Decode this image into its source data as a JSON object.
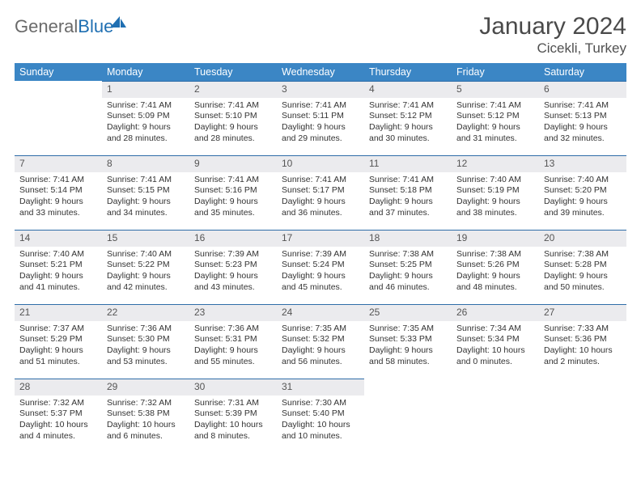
{
  "logo": {
    "text_gray": "General",
    "text_blue": "Blue"
  },
  "title": "January 2024",
  "location": "Cicekli, Turkey",
  "colors": {
    "header_bg": "#3b86c5",
    "header_text": "#ffffff",
    "daynum_bg": "#ebebee",
    "daynum_border": "#2f6da8",
    "body_text": "#333333",
    "title_text": "#4a4a4a",
    "logo_gray": "#6a6a6a",
    "logo_blue": "#1f6fb2"
  },
  "weekdays": [
    "Sunday",
    "Monday",
    "Tuesday",
    "Wednesday",
    "Thursday",
    "Friday",
    "Saturday"
  ],
  "weeks": [
    [
      null,
      {
        "d": "1",
        "sr": "7:41 AM",
        "ss": "5:09 PM",
        "dl": "9 hours and 28 minutes."
      },
      {
        "d": "2",
        "sr": "7:41 AM",
        "ss": "5:10 PM",
        "dl": "9 hours and 28 minutes."
      },
      {
        "d": "3",
        "sr": "7:41 AM",
        "ss": "5:11 PM",
        "dl": "9 hours and 29 minutes."
      },
      {
        "d": "4",
        "sr": "7:41 AM",
        "ss": "5:12 PM",
        "dl": "9 hours and 30 minutes."
      },
      {
        "d": "5",
        "sr": "7:41 AM",
        "ss": "5:12 PM",
        "dl": "9 hours and 31 minutes."
      },
      {
        "d": "6",
        "sr": "7:41 AM",
        "ss": "5:13 PM",
        "dl": "9 hours and 32 minutes."
      }
    ],
    [
      {
        "d": "7",
        "sr": "7:41 AM",
        "ss": "5:14 PM",
        "dl": "9 hours and 33 minutes."
      },
      {
        "d": "8",
        "sr": "7:41 AM",
        "ss": "5:15 PM",
        "dl": "9 hours and 34 minutes."
      },
      {
        "d": "9",
        "sr": "7:41 AM",
        "ss": "5:16 PM",
        "dl": "9 hours and 35 minutes."
      },
      {
        "d": "10",
        "sr": "7:41 AM",
        "ss": "5:17 PM",
        "dl": "9 hours and 36 minutes."
      },
      {
        "d": "11",
        "sr": "7:41 AM",
        "ss": "5:18 PM",
        "dl": "9 hours and 37 minutes."
      },
      {
        "d": "12",
        "sr": "7:40 AM",
        "ss": "5:19 PM",
        "dl": "9 hours and 38 minutes."
      },
      {
        "d": "13",
        "sr": "7:40 AM",
        "ss": "5:20 PM",
        "dl": "9 hours and 39 minutes."
      }
    ],
    [
      {
        "d": "14",
        "sr": "7:40 AM",
        "ss": "5:21 PM",
        "dl": "9 hours and 41 minutes."
      },
      {
        "d": "15",
        "sr": "7:40 AM",
        "ss": "5:22 PM",
        "dl": "9 hours and 42 minutes."
      },
      {
        "d": "16",
        "sr": "7:39 AM",
        "ss": "5:23 PM",
        "dl": "9 hours and 43 minutes."
      },
      {
        "d": "17",
        "sr": "7:39 AM",
        "ss": "5:24 PM",
        "dl": "9 hours and 45 minutes."
      },
      {
        "d": "18",
        "sr": "7:38 AM",
        "ss": "5:25 PM",
        "dl": "9 hours and 46 minutes."
      },
      {
        "d": "19",
        "sr": "7:38 AM",
        "ss": "5:26 PM",
        "dl": "9 hours and 48 minutes."
      },
      {
        "d": "20",
        "sr": "7:38 AM",
        "ss": "5:28 PM",
        "dl": "9 hours and 50 minutes."
      }
    ],
    [
      {
        "d": "21",
        "sr": "7:37 AM",
        "ss": "5:29 PM",
        "dl": "9 hours and 51 minutes."
      },
      {
        "d": "22",
        "sr": "7:36 AM",
        "ss": "5:30 PM",
        "dl": "9 hours and 53 minutes."
      },
      {
        "d": "23",
        "sr": "7:36 AM",
        "ss": "5:31 PM",
        "dl": "9 hours and 55 minutes."
      },
      {
        "d": "24",
        "sr": "7:35 AM",
        "ss": "5:32 PM",
        "dl": "9 hours and 56 minutes."
      },
      {
        "d": "25",
        "sr": "7:35 AM",
        "ss": "5:33 PM",
        "dl": "9 hours and 58 minutes."
      },
      {
        "d": "26",
        "sr": "7:34 AM",
        "ss": "5:34 PM",
        "dl": "10 hours and 0 minutes."
      },
      {
        "d": "27",
        "sr": "7:33 AM",
        "ss": "5:36 PM",
        "dl": "10 hours and 2 minutes."
      }
    ],
    [
      {
        "d": "28",
        "sr": "7:32 AM",
        "ss": "5:37 PM",
        "dl": "10 hours and 4 minutes."
      },
      {
        "d": "29",
        "sr": "7:32 AM",
        "ss": "5:38 PM",
        "dl": "10 hours and 6 minutes."
      },
      {
        "d": "30",
        "sr": "7:31 AM",
        "ss": "5:39 PM",
        "dl": "10 hours and 8 minutes."
      },
      {
        "d": "31",
        "sr": "7:30 AM",
        "ss": "5:40 PM",
        "dl": "10 hours and 10 minutes."
      },
      null,
      null,
      null
    ]
  ],
  "labels": {
    "sunrise": "Sunrise: ",
    "sunset": "Sunset: ",
    "daylight": "Daylight: "
  }
}
